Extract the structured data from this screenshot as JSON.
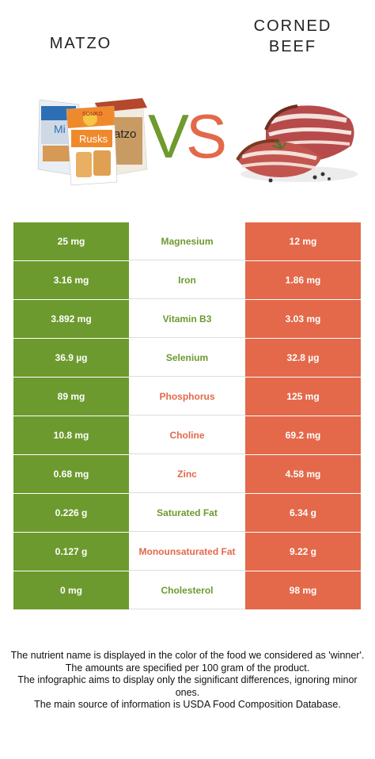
{
  "titles": {
    "left": "MATZO",
    "right_line1": "CORNED",
    "right_line2": "BEEF"
  },
  "vs": {
    "v": "V",
    "s": "S"
  },
  "colors": {
    "winner_left": "#6c9a2e",
    "winner_right": "#e3694a"
  },
  "packaging": {
    "brand": "SONKO",
    "product_front": "Rusks",
    "product_back": "atzo",
    "product_side": "Mi"
  },
  "rows": [
    {
      "left": "25 mg",
      "nutrient": "Magnesium",
      "right": "12 mg",
      "winner": "left"
    },
    {
      "left": "3.16 mg",
      "nutrient": "Iron",
      "right": "1.86 mg",
      "winner": "left"
    },
    {
      "left": "3.892 mg",
      "nutrient": "Vitamin B3",
      "right": "3.03 mg",
      "winner": "left"
    },
    {
      "left": "36.9 µg",
      "nutrient": "Selenium",
      "right": "32.8 µg",
      "winner": "left"
    },
    {
      "left": "89 mg",
      "nutrient": "Phosphorus",
      "right": "125 mg",
      "winner": "right"
    },
    {
      "left": "10.8 mg",
      "nutrient": "Choline",
      "right": "69.2 mg",
      "winner": "right"
    },
    {
      "left": "0.68 mg",
      "nutrient": "Zinc",
      "right": "4.58 mg",
      "winner": "right"
    },
    {
      "left": "0.226 g",
      "nutrient": "Saturated Fat",
      "right": "6.34 g",
      "winner": "left"
    },
    {
      "left": "0.127 g",
      "nutrient": "Monounsaturated Fat",
      "right": "9.22 g",
      "winner": "right"
    },
    {
      "left": "0 mg",
      "nutrient": "Cholesterol",
      "right": "98 mg",
      "winner": "left"
    }
  ],
  "footer": {
    "line1": "The nutrient name is displayed in the color of the food we considered as 'winner'.",
    "line2": "The amounts are specified per 100 gram of the product.",
    "line3": "The infographic aims to display only the significant differences, ignoring minor ones.",
    "line4": "The main source of information is USDA Food Composition Database."
  }
}
